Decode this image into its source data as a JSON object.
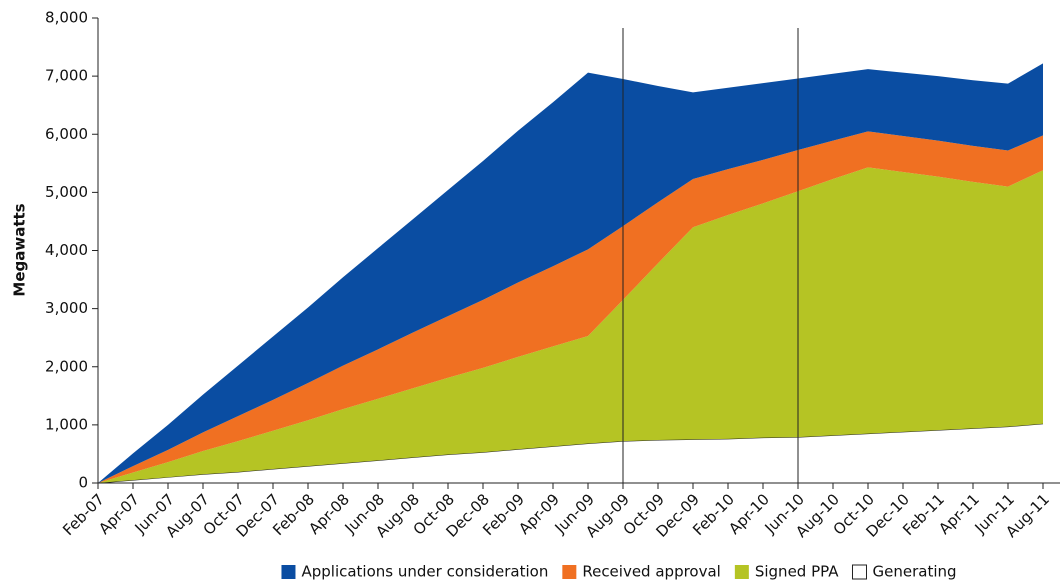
{
  "chart_data": {
    "type": "stacked_area",
    "ylabel": "Megawatts",
    "categories": [
      "Feb-07",
      "Apr-07",
      "Jun-07",
      "Aug-07",
      "Oct-07",
      "Dec-07",
      "Feb-08",
      "Apr-08",
      "Jun-08",
      "Aug-08",
      "Oct-08",
      "Dec-08",
      "Feb-09",
      "Apr-09",
      "Jun-09",
      "Aug-09",
      "Oct-09",
      "Dec-09",
      "Feb-10",
      "Apr-10",
      "Jun-10",
      "Aug-10",
      "Oct-10",
      "Dec-10",
      "Feb-11",
      "Apr-11",
      "Jun-11",
      "Aug-11"
    ],
    "series": [
      {
        "name": "Generating",
        "color": "#ffffff",
        "values": [
          0,
          50,
          100,
          150,
          190,
          240,
          290,
          340,
          390,
          440,
          490,
          530,
          580,
          630,
          680,
          720,
          740,
          750,
          760,
          780,
          790,
          820,
          850,
          880,
          910,
          940,
          970,
          1020
        ]
      },
      {
        "name": "Signed PPA",
        "color": "#b5c424",
        "values": [
          0,
          130,
          260,
          400,
          530,
          660,
          790,
          930,
          1060,
          1190,
          1320,
          1450,
          1590,
          1720,
          1850,
          2430,
          3040,
          3650,
          3850,
          4030,
          4230,
          4410,
          4580,
          4470,
          4360,
          4240,
          4130,
          4360
        ]
      },
      {
        "name": "Received approval",
        "color": "#f07022",
        "values": [
          0,
          110,
          210,
          320,
          430,
          530,
          640,
          750,
          850,
          960,
          1060,
          1170,
          1280,
          1380,
          1490,
          1270,
          1050,
          830,
          790,
          750,
          710,
          660,
          620,
          620,
          620,
          620,
          620,
          600
        ]
      },
      {
        "name": "Applications under consideration",
        "color": "#0a4da2",
        "values": [
          0,
          220,
          430,
          650,
          870,
          1090,
          1300,
          1520,
          1740,
          1950,
          2170,
          2390,
          2610,
          2820,
          3040,
          2530,
          2000,
          1490,
          1400,
          1320,
          1230,
          1150,
          1070,
          1090,
          1110,
          1130,
          1150,
          1240
        ]
      }
    ],
    "legend_order": [
      3,
      2,
      1,
      0
    ],
    "vlines": [
      "Aug-09",
      "Jun-10"
    ],
    "ylim": [
      0,
      8000
    ],
    "yticks": [
      0,
      {
        "value": 1000,
        "label": "1,000"
      },
      {
        "value": 2000,
        "label": "2,000"
      },
      {
        "value": 3000,
        "label": "3,000"
      },
      {
        "value": 4000,
        "label": "4,000"
      },
      {
        "value": 5000,
        "label": "5,000"
      },
      {
        "value": 6000,
        "label": "6,000"
      },
      {
        "value": 7000,
        "label": "7,000"
      },
      {
        "value": 8000,
        "label": "8,000"
      }
    ],
    "legend": "bottom"
  }
}
